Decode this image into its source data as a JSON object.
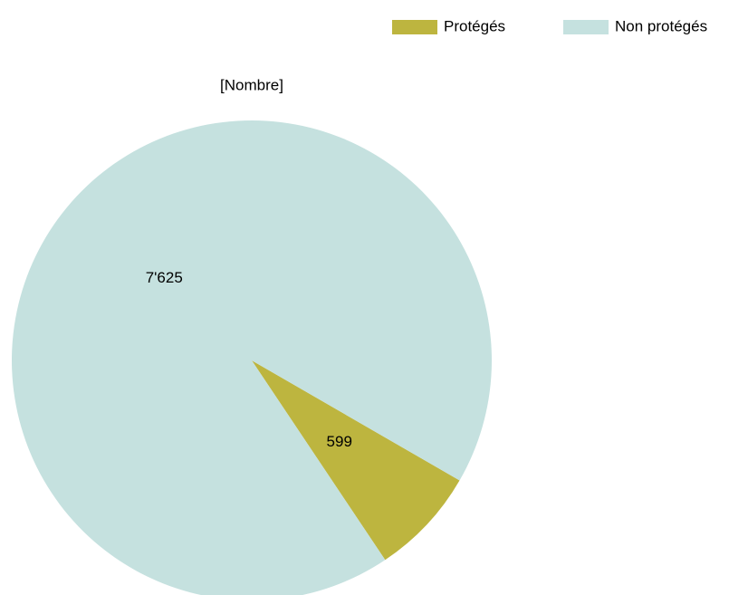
{
  "chart_data": {
    "type": "pie",
    "title": "[Nombre]",
    "categories": [
      "Protégés",
      "Non protégés"
    ],
    "values": [
      599,
      7625
    ],
    "value_labels": [
      "599",
      "7'625"
    ],
    "colors": [
      "#bdb53f",
      "#c5e1df"
    ],
    "legend": "top-right"
  }
}
